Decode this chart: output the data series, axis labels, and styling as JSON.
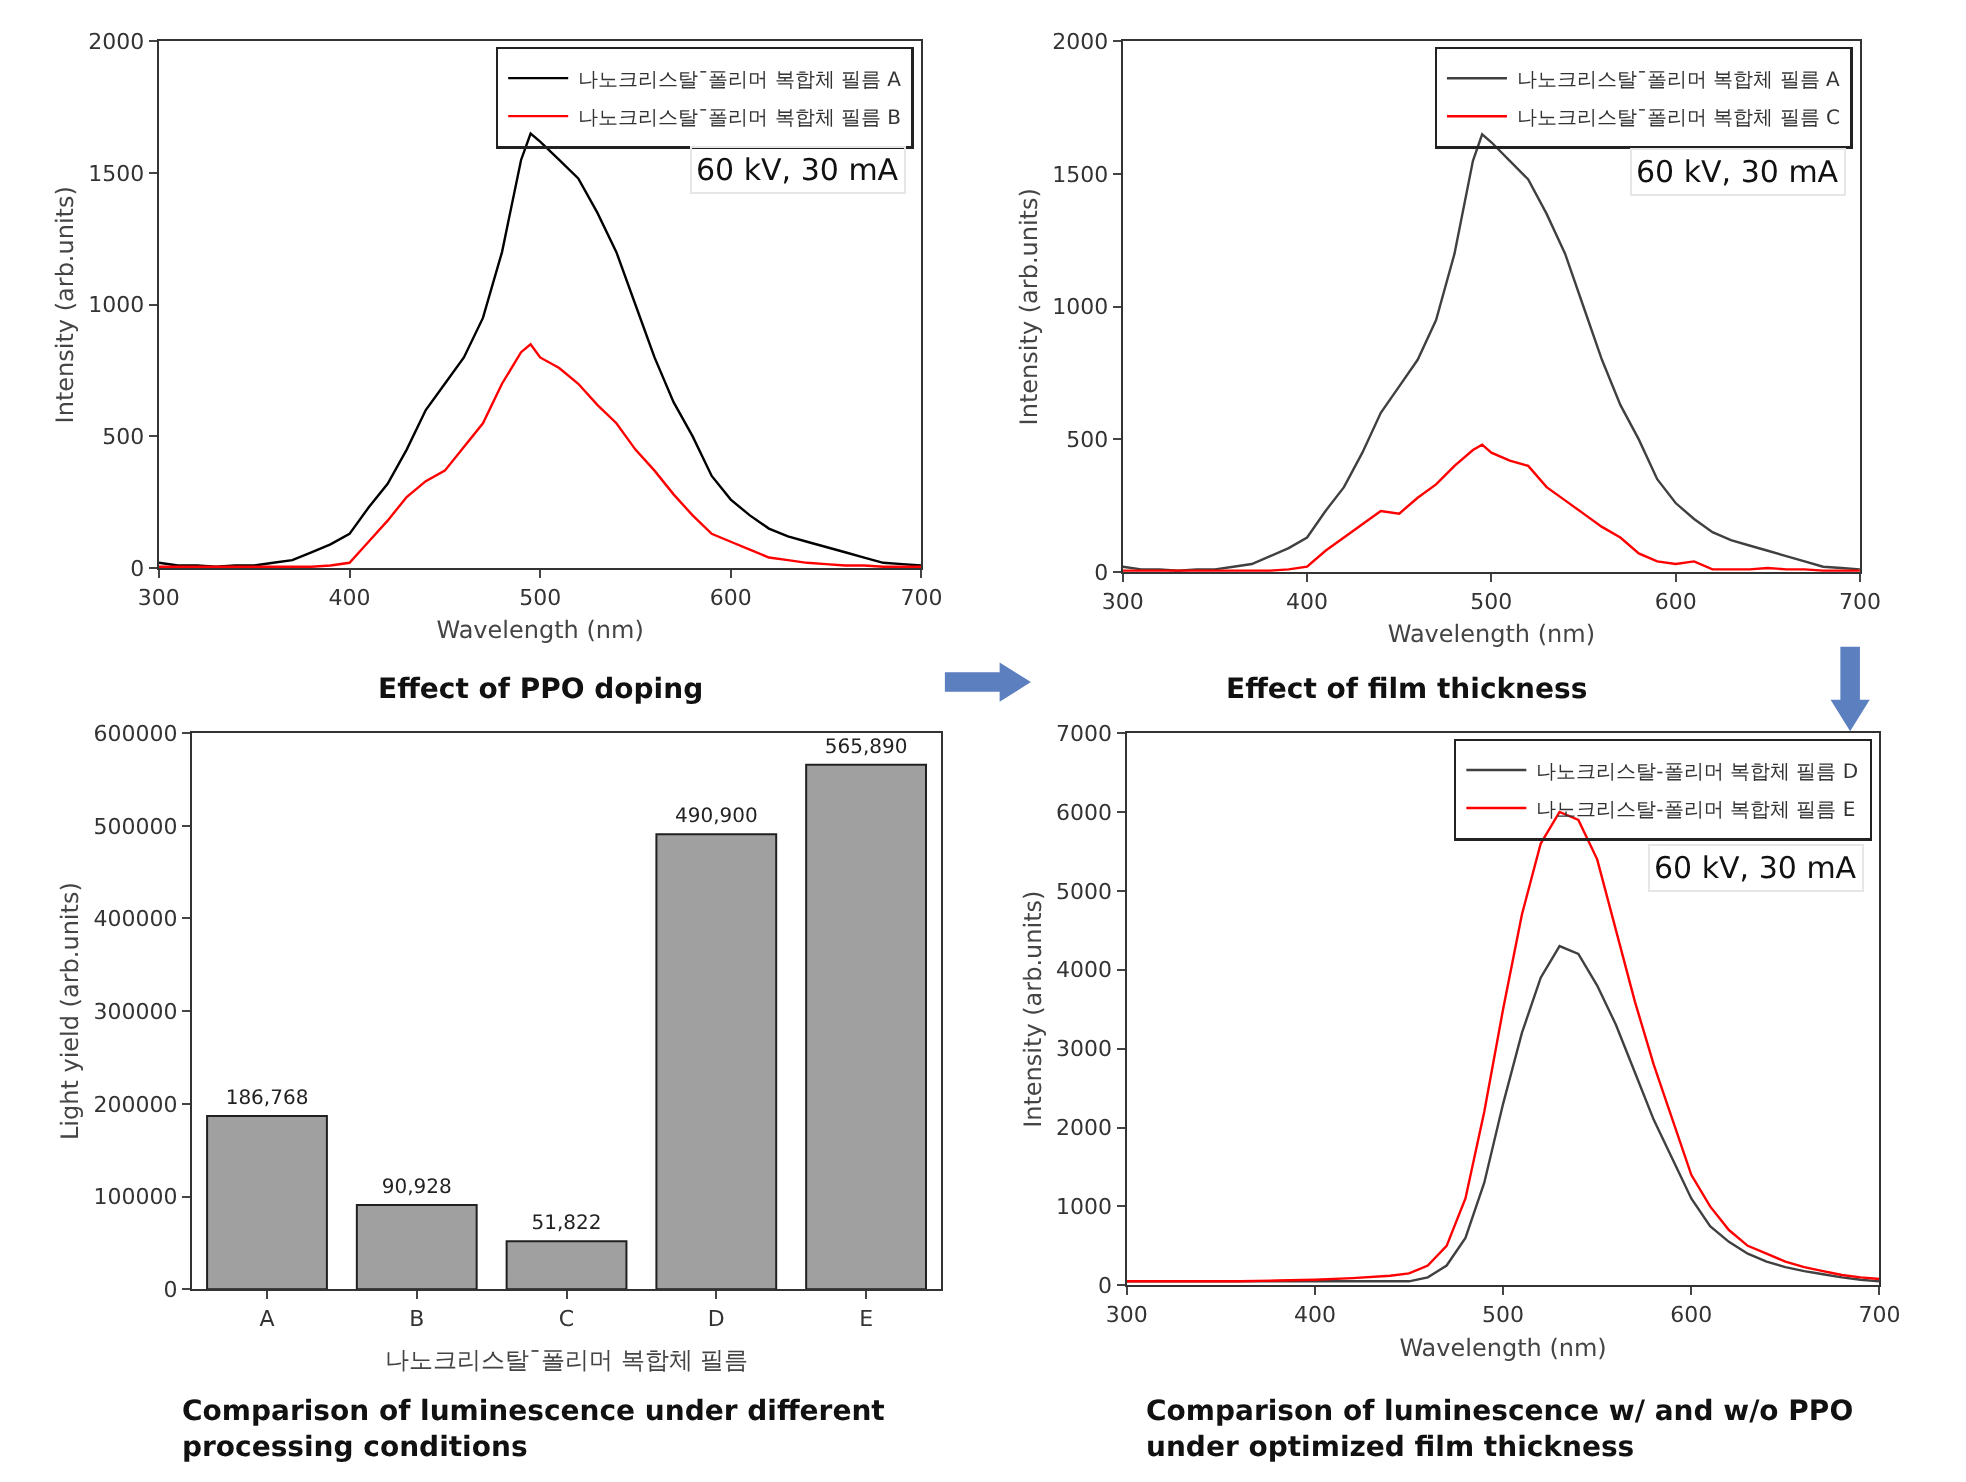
{
  "chart_data": [
    {
      "type": "line",
      "title": "Effect of PPO doping",
      "xlabel": "Wavelength (nm)",
      "ylabel": "Intensity (arb.units)",
      "xlim": [
        300,
        700
      ],
      "xticks": [
        300,
        400,
        500,
        600,
        700
      ],
      "ylim": [
        0,
        2000
      ],
      "yticks": [
        0,
        500,
        1000,
        1500,
        2000
      ],
      "legend": "top right",
      "annotations": [
        "60 kV, 30 mA"
      ],
      "x": [
        300,
        310,
        320,
        330,
        340,
        350,
        360,
        370,
        380,
        390,
        400,
        410,
        420,
        430,
        440,
        450,
        460,
        470,
        480,
        490,
        495,
        500,
        510,
        520,
        530,
        540,
        550,
        560,
        570,
        580,
        590,
        600,
        610,
        620,
        630,
        640,
        650,
        660,
        670,
        680,
        690,
        700
      ],
      "series": [
        {
          "name": "나노크리스탈¯폴리머 복합체 필름 A",
          "color": "#000000",
          "values": [
            20,
            10,
            10,
            5,
            10,
            10,
            20,
            30,
            60,
            90,
            130,
            230,
            320,
            450,
            600,
            700,
            800,
            950,
            1200,
            1550,
            1650,
            1620,
            1550,
            1480,
            1350,
            1200,
            1000,
            800,
            630,
            500,
            350,
            260,
            200,
            150,
            120,
            100,
            80,
            60,
            40,
            20,
            15,
            10
          ]
        },
        {
          "name": "나노크리스탈¯폴리머 복합체 필름 B",
          "color": "#ff0000",
          "values": [
            5,
            5,
            5,
            5,
            5,
            5,
            5,
            5,
            5,
            10,
            20,
            100,
            180,
            270,
            330,
            370,
            460,
            550,
            700,
            820,
            850,
            800,
            760,
            700,
            620,
            550,
            450,
            370,
            280,
            200,
            130,
            100,
            70,
            40,
            30,
            20,
            15,
            10,
            10,
            5,
            5,
            5
          ]
        }
      ]
    },
    {
      "type": "line",
      "title": "Effect of film thickness",
      "xlabel": "Wavelength (nm)",
      "ylabel": "Intensity (arb.units)",
      "xlim": [
        300,
        700
      ],
      "xticks": [
        300,
        400,
        500,
        600,
        700
      ],
      "ylim": [
        0,
        2000
      ],
      "yticks": [
        0,
        500,
        1000,
        1500,
        2000
      ],
      "legend": "top right",
      "annotations": [
        "60 kV, 30 mA"
      ],
      "x": [
        300,
        310,
        320,
        330,
        340,
        350,
        360,
        370,
        380,
        390,
        400,
        410,
        420,
        430,
        440,
        450,
        460,
        470,
        480,
        490,
        495,
        500,
        510,
        520,
        530,
        540,
        550,
        560,
        570,
        580,
        590,
        600,
        610,
        620,
        630,
        640,
        650,
        660,
        670,
        680,
        690,
        700
      ],
      "series": [
        {
          "name": "나노크리스탈¯폴리머 복합체 필름 A",
          "color": "#404040",
          "values": [
            20,
            10,
            10,
            5,
            10,
            10,
            20,
            30,
            60,
            90,
            130,
            230,
            320,
            450,
            600,
            700,
            800,
            950,
            1200,
            1550,
            1650,
            1620,
            1550,
            1480,
            1350,
            1200,
            1000,
            800,
            630,
            500,
            350,
            260,
            200,
            150,
            120,
            100,
            80,
            60,
            40,
            20,
            15,
            10
          ]
        },
        {
          "name": "나노크리스탈¯폴리머 복합체 필름 C",
          "color": "#ff0000",
          "values": [
            5,
            5,
            5,
            5,
            5,
            5,
            5,
            5,
            5,
            10,
            20,
            80,
            130,
            180,
            230,
            220,
            280,
            330,
            400,
            460,
            480,
            450,
            420,
            400,
            320,
            270,
            220,
            170,
            130,
            70,
            40,
            30,
            40,
            10,
            10,
            10,
            15,
            10,
            10,
            5,
            5,
            5
          ]
        }
      ]
    },
    {
      "type": "bar",
      "title": "Comparison of luminescence under different processing conditions",
      "xlabel": "나노크리스탈¯폴리머 복합체 필름",
      "ylabel": "Light yield (arb.units)",
      "ylim": [
        0,
        600000
      ],
      "yticks": [
        0,
        100000,
        200000,
        300000,
        400000,
        500000,
        600000
      ],
      "categories": [
        "A",
        "B",
        "C",
        "D",
        "E"
      ],
      "color": "#a0a0a0",
      "values": [
        186768,
        90928,
        51822,
        490900,
        565890
      ],
      "value_labels": [
        "186,768",
        "90,928",
        "51,822",
        "490,900",
        "565,890"
      ]
    },
    {
      "type": "line",
      "title": "Comparison of luminescence w/ and w/o PPO under optimized film thickness",
      "xlabel": "Wavelength (nm)",
      "ylabel": "Intensity (arb.units)",
      "xlim": [
        300,
        700
      ],
      "xticks": [
        300,
        400,
        500,
        600,
        700
      ],
      "ylim": [
        0,
        7000
      ],
      "yticks": [
        0,
        1000,
        2000,
        3000,
        4000,
        5000,
        6000,
        7000
      ],
      "legend": "top right",
      "annotations": [
        "60 kV, 30 mA"
      ],
      "x": [
        300,
        320,
        340,
        360,
        380,
        400,
        420,
        440,
        450,
        460,
        470,
        480,
        490,
        500,
        510,
        520,
        530,
        540,
        550,
        560,
        570,
        580,
        590,
        600,
        610,
        620,
        630,
        640,
        650,
        660,
        670,
        680,
        690,
        700
      ],
      "series": [
        {
          "name": "나노크리스탈-폴리머 복합체 필름 D",
          "color": "#404040",
          "values": [
            50,
            50,
            50,
            50,
            50,
            50,
            50,
            50,
            50,
            100,
            250,
            600,
            1300,
            2300,
            3200,
            3900,
            4300,
            4200,
            3800,
            3300,
            2700,
            2100,
            1600,
            1100,
            750,
            550,
            400,
            300,
            230,
            180,
            140,
            100,
            70,
            50
          ]
        },
        {
          "name": "나노크리스탈-폴리머 복합체 필름 E",
          "color": "#ff0000",
          "values": [
            50,
            50,
            50,
            50,
            60,
            70,
            90,
            120,
            150,
            250,
            500,
            1100,
            2200,
            3500,
            4700,
            5600,
            6000,
            5900,
            5400,
            4500,
            3600,
            2800,
            2100,
            1400,
            1000,
            700,
            500,
            400,
            300,
            230,
            180,
            130,
            100,
            80
          ]
        }
      ]
    }
  ]
}
